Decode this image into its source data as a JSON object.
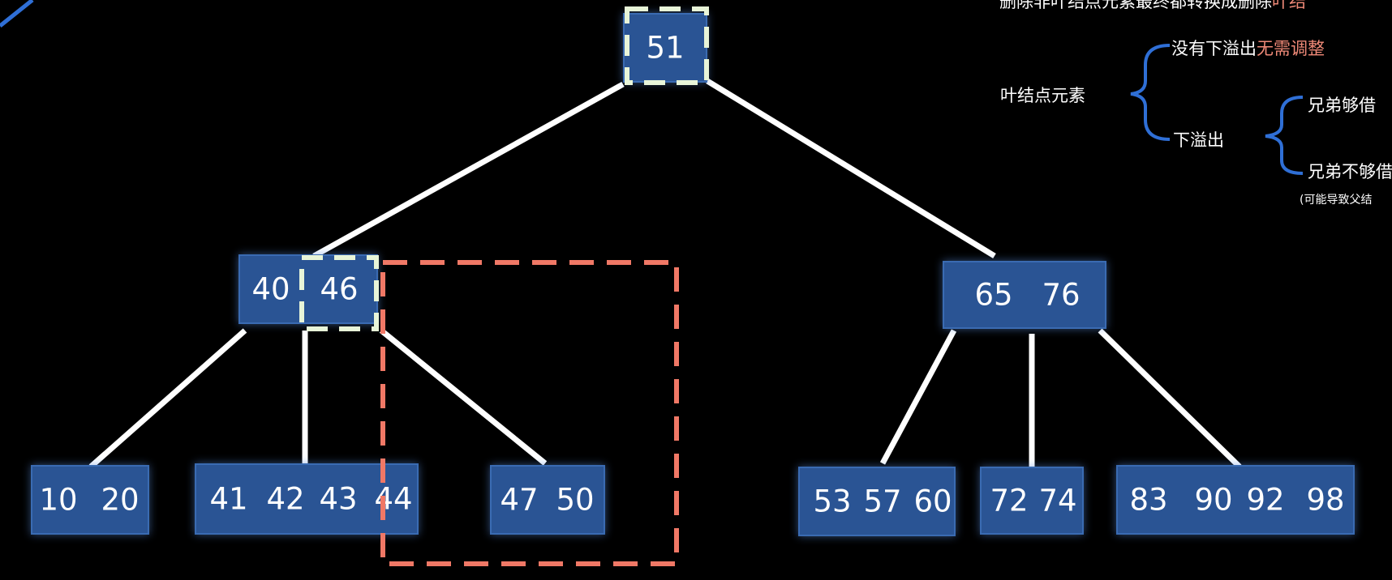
{
  "tree": {
    "root": {
      "keys": [
        "51"
      ]
    },
    "left": {
      "keys": [
        "40",
        "46"
      ]
    },
    "right": {
      "keys": [
        "65",
        "76"
      ]
    },
    "leaves": [
      {
        "keys": [
          "10",
          "20"
        ]
      },
      {
        "keys": [
          "41",
          "42",
          "43",
          "44"
        ]
      },
      {
        "keys": [
          "47",
          "50"
        ]
      },
      {
        "keys": [
          "53",
          "57",
          "60"
        ]
      },
      {
        "keys": [
          "72",
          "74"
        ]
      },
      {
        "keys": [
          "83",
          "90",
          "92",
          "98"
        ]
      }
    ]
  },
  "notes": {
    "top_text": "删除非叶结点元素最终都转换成删除",
    "top_text_hl": "叶结",
    "no_underflow": "没有下溢出",
    "no_adjust": "无需调整",
    "leaf_element": "叶结点元素",
    "underflow": "下溢出",
    "sibling_enough": "兄弟够借",
    "sibling_not_enough": "兄弟不够借",
    "may_cause": "(可能导致父结"
  },
  "colors": {
    "node_fill": "#2a5494",
    "edge": "#ffffff",
    "dash_highlight": "#e8f5d8",
    "dash_red": "#f07866",
    "brace": "#2f6fd6"
  }
}
